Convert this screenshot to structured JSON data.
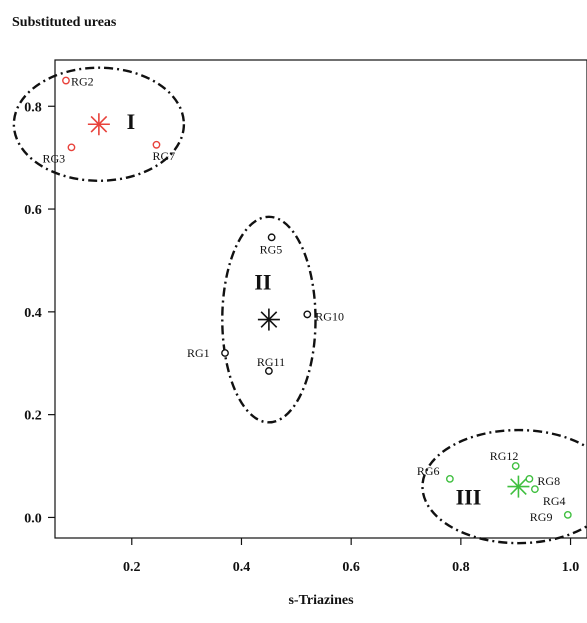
{
  "chart_data": {
    "type": "scatter",
    "title": "Substituted ureas",
    "xlabel": "s-Triazines",
    "ylabel": "",
    "xlim": [
      0.06,
      1.03
    ],
    "ylim": [
      -0.04,
      0.89
    ],
    "xticks": [
      0.2,
      0.4,
      0.6,
      0.8,
      1.0
    ],
    "xtick_labels": [
      "0.2",
      "0.4",
      "0.6",
      "0.8",
      "1.0"
    ],
    "yticks": [
      0.0,
      0.2,
      0.4,
      0.6,
      0.8
    ],
    "ytick_labels": [
      "0.0",
      "0.2",
      "0.4",
      "0.6",
      "0.8"
    ],
    "grid": false,
    "points": [
      {
        "label": "RG1",
        "x": 0.37,
        "y": 0.32,
        "cluster": "II"
      },
      {
        "label": "RG2",
        "x": 0.08,
        "y": 0.85,
        "cluster": "I"
      },
      {
        "label": "RG3",
        "x": 0.09,
        "y": 0.72,
        "cluster": "I"
      },
      {
        "label": "RG4",
        "x": 0.935,
        "y": 0.055,
        "cluster": "III"
      },
      {
        "label": "RG5",
        "x": 0.455,
        "y": 0.545,
        "cluster": "II"
      },
      {
        "label": "RG6",
        "x": 0.78,
        "y": 0.075,
        "cluster": "III"
      },
      {
        "label": "RG7",
        "x": 0.245,
        "y": 0.725,
        "cluster": "I"
      },
      {
        "label": "RG8",
        "x": 0.925,
        "y": 0.075,
        "cluster": "III"
      },
      {
        "label": "RG9",
        "x": 0.995,
        "y": 0.005,
        "cluster": "III"
      },
      {
        "label": "RG10",
        "x": 0.52,
        "y": 0.395,
        "cluster": "II"
      },
      {
        "label": "RG11",
        "x": 0.45,
        "y": 0.285,
        "cluster": "II"
      },
      {
        "label": "RG12",
        "x": 0.9,
        "y": 0.1,
        "cluster": "III"
      }
    ],
    "clusters": [
      {
        "name": "I",
        "center": [
          0.14,
          0.765
        ],
        "color": "#e8423b",
        "ellipse_radius_data": [
          0.155,
          0.11
        ]
      },
      {
        "name": "II",
        "center": [
          0.45,
          0.385
        ],
        "color": "#111111",
        "ellipse_radius_data": [
          0.085,
          0.2
        ]
      },
      {
        "name": "III",
        "center": [
          0.905,
          0.06
        ],
        "color": "#3fbf3f",
        "ellipse_radius_data": [
          0.175,
          0.11
        ]
      }
    ],
    "colors": {
      "axis": "#111111",
      "text": "#111111"
    }
  }
}
